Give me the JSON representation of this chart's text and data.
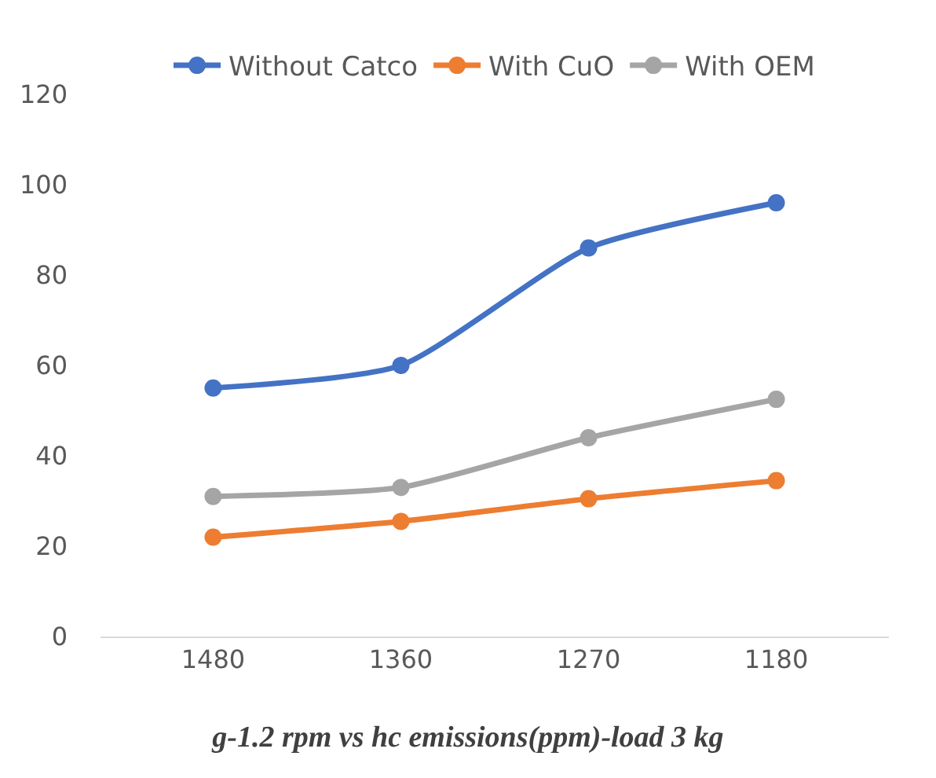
{
  "chart_data": {
    "type": "line",
    "title": "g-1.2 rpm vs hc emissions(ppm)-load 3 kg",
    "categories": [
      "1480",
      "1360",
      "1270",
      "1180"
    ],
    "series": [
      {
        "name": "Without Catco",
        "color": "#4472c4",
        "values": [
          55,
          60,
          86,
          96
        ]
      },
      {
        "name": "With CuO",
        "color": "#ed7d31",
        "values": [
          22,
          25.5,
          30.5,
          34.5
        ]
      },
      {
        "name": "With OEM",
        "color": "#a5a5a5",
        "values": [
          31,
          33,
          44,
          52.5
        ]
      }
    ],
    "ylim": [
      0,
      120
    ],
    "yticks": [
      0,
      20,
      40,
      60,
      80,
      100,
      120
    ],
    "grid": false,
    "legend": "top",
    "marker": "circle",
    "line_style": "solid"
  }
}
